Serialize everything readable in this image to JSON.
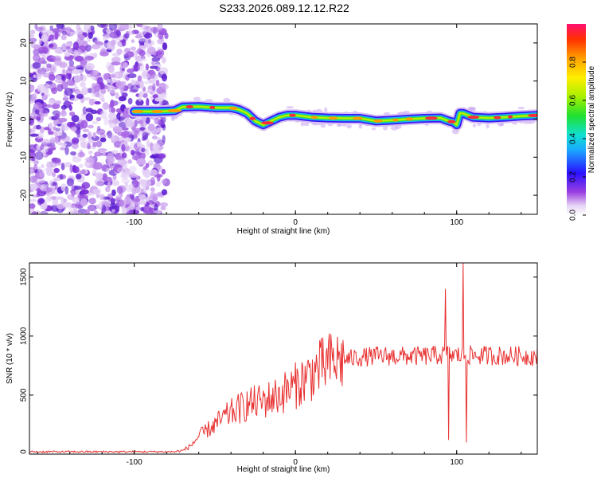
{
  "page_title": "S233.2026.089.12.12.R22",
  "chart_data": [
    {
      "type": "heatmap",
      "name": "spectrogram",
      "title": "S233.2026.089.12.12.R22",
      "xlabel": "Height of straight line (km)",
      "ylabel": "Frequency (Hz)",
      "xlim": [
        -165,
        150
      ],
      "ylim": [
        -25,
        25
      ],
      "xticks": [
        -100,
        0,
        100
      ],
      "yticks": [
        -20,
        -10,
        0,
        10,
        20
      ],
      "noise_region_x": [
        -165,
        -80
      ],
      "signal_track": {
        "x": [
          -100,
          -85,
          -75,
          -70,
          -60,
          -50,
          -40,
          -35,
          -30,
          -25,
          -20,
          -15,
          -10,
          -5,
          0,
          10,
          20,
          30,
          40,
          50,
          60,
          70,
          80,
          90,
          95,
          98,
          100,
          102,
          104,
          110,
          120,
          130,
          140,
          150
        ],
        "freq": [
          2,
          2,
          2.2,
          3.2,
          3.3,
          3.0,
          3.0,
          2.5,
          1.5,
          -0.5,
          -1.5,
          -0.5,
          0.5,
          1.0,
          1.0,
          0.5,
          0.3,
          0.2,
          0.2,
          -0.5,
          -0.3,
          0,
          0.2,
          0.3,
          -0.5,
          -0.8,
          -1.5,
          1.5,
          1.5,
          0.5,
          0.3,
          0.5,
          0.8,
          1.0
        ]
      },
      "colorbar": {
        "label": "Normalized spectral amplitude",
        "range": [
          0,
          1
        ],
        "ticks": [
          "0.0",
          "0.2",
          "0.4",
          "0.6",
          "0.8"
        ]
      }
    },
    {
      "type": "line",
      "name": "snr",
      "xlabel": "Height of straight line (km)",
      "ylabel": "SNR (10 * v/v)",
      "xlim": [
        -165,
        150
      ],
      "ylim": [
        0,
        1620
      ],
      "xticks": [
        -100,
        0,
        100
      ],
      "yticks": [
        0,
        500,
        1000,
        1500
      ],
      "color": "#e83232",
      "envelope": {
        "x": [
          -165,
          -75,
          -70,
          -65,
          -60,
          -50,
          -40,
          -30,
          -20,
          -10,
          0,
          10,
          20,
          30,
          40,
          50,
          60,
          70,
          80,
          90,
          150
        ],
        "y": [
          20,
          20,
          30,
          70,
          150,
          250,
          350,
          420,
          450,
          500,
          580,
          680,
          770,
          800,
          820,
          830,
          830,
          830,
          830,
          840,
          830
        ]
      },
      "spikes": [
        {
          "x": 93,
          "y": 1400
        },
        {
          "x": 95,
          "y": 120
        },
        {
          "x": 104,
          "y": 1620
        },
        {
          "x": 106,
          "y": 100
        }
      ]
    }
  ]
}
